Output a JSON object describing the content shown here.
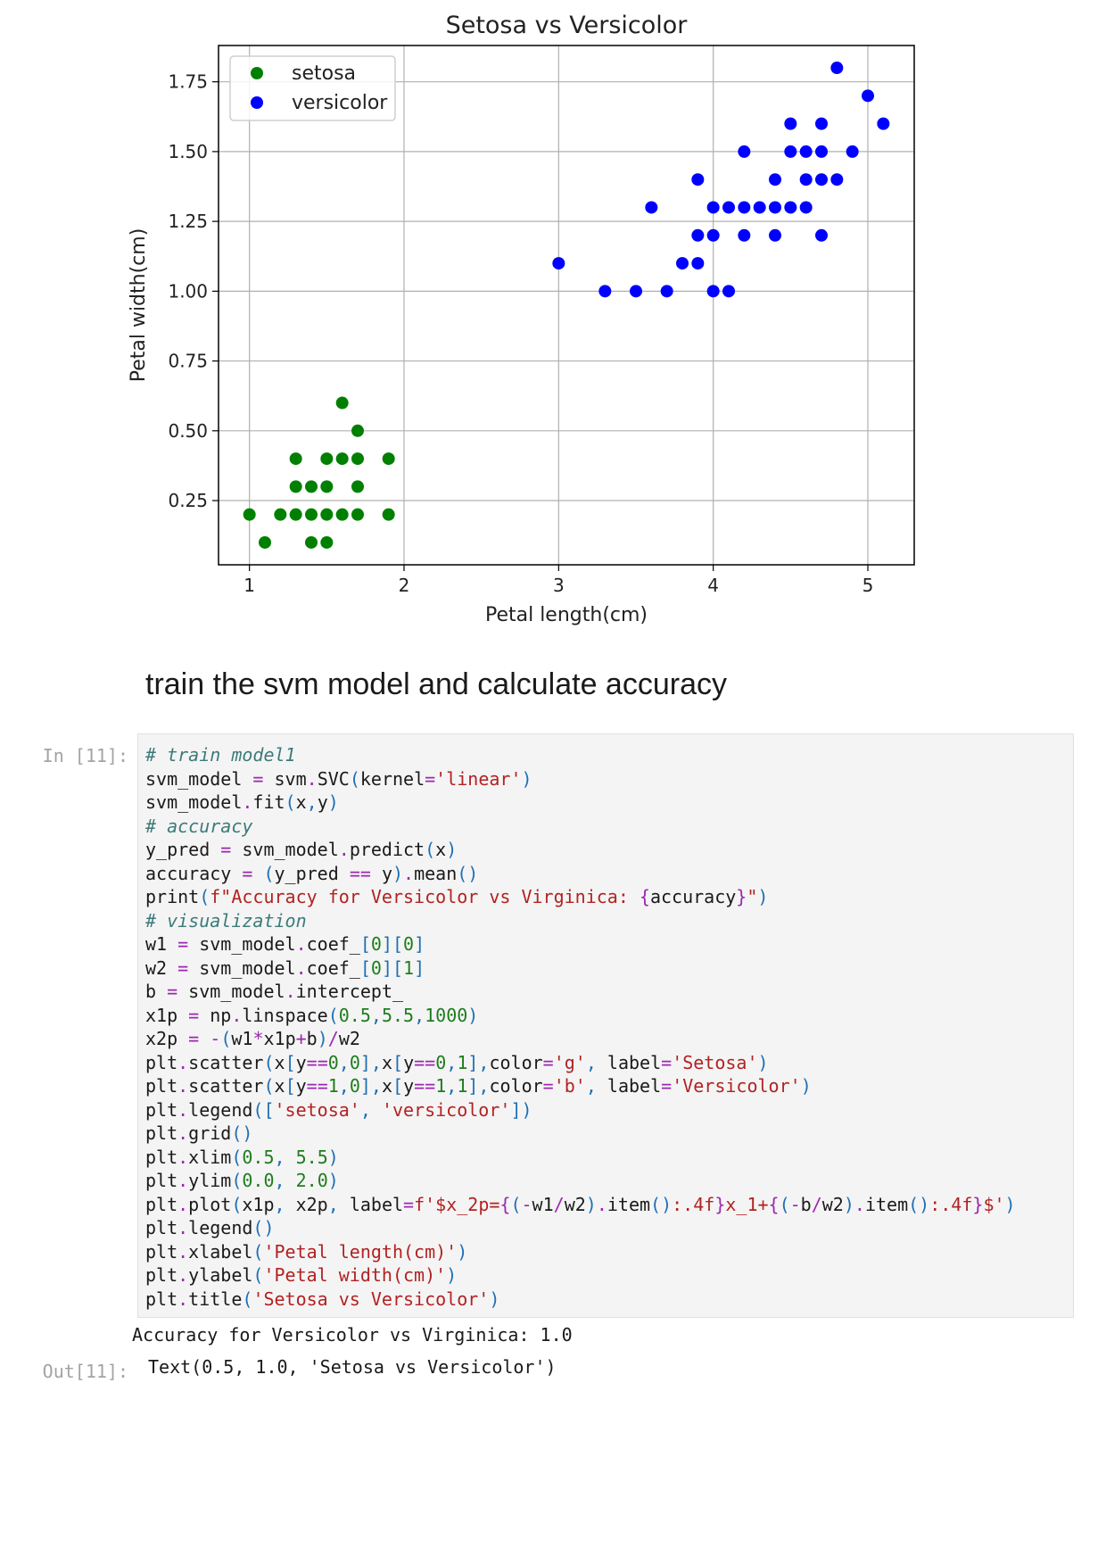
{
  "chart_data": {
    "type": "scatter",
    "title": "Setosa vs Versicolor",
    "xlabel": "Petal length(cm)",
    "ylabel": "Petal width(cm)",
    "xlim": [
      0.8,
      5.3
    ],
    "ylim": [
      0.02,
      1.88
    ],
    "xticks": [
      1,
      2,
      3,
      4,
      5
    ],
    "yticks": [
      0.25,
      0.5,
      0.75,
      1.0,
      1.25,
      1.5,
      1.75
    ],
    "ytick_labels": [
      "0.25",
      "0.50",
      "0.75",
      "1.00",
      "1.25",
      "1.50",
      "1.75"
    ],
    "grid": true,
    "legend_position": "top-left",
    "series": [
      {
        "name": "setosa",
        "color": "#008000",
        "points": [
          [
            1.0,
            0.2
          ],
          [
            1.1,
            0.1
          ],
          [
            1.2,
            0.2
          ],
          [
            1.3,
            0.2
          ],
          [
            1.3,
            0.3
          ],
          [
            1.3,
            0.4
          ],
          [
            1.4,
            0.1
          ],
          [
            1.4,
            0.2
          ],
          [
            1.4,
            0.3
          ],
          [
            1.5,
            0.1
          ],
          [
            1.5,
            0.2
          ],
          [
            1.5,
            0.3
          ],
          [
            1.5,
            0.4
          ],
          [
            1.6,
            0.2
          ],
          [
            1.6,
            0.4
          ],
          [
            1.6,
            0.6
          ],
          [
            1.7,
            0.2
          ],
          [
            1.7,
            0.3
          ],
          [
            1.7,
            0.4
          ],
          [
            1.7,
            0.5
          ],
          [
            1.9,
            0.2
          ],
          [
            1.9,
            0.4
          ]
        ]
      },
      {
        "name": "versicolor",
        "color": "#0000ff",
        "points": [
          [
            3.0,
            1.1
          ],
          [
            3.3,
            1.0
          ],
          [
            3.5,
            1.0
          ],
          [
            3.6,
            1.3
          ],
          [
            3.7,
            1.0
          ],
          [
            3.8,
            1.1
          ],
          [
            3.9,
            1.1
          ],
          [
            3.9,
            1.2
          ],
          [
            3.9,
            1.4
          ],
          [
            4.0,
            1.0
          ],
          [
            4.0,
            1.2
          ],
          [
            4.0,
            1.3
          ],
          [
            4.1,
            1.0
          ],
          [
            4.1,
            1.3
          ],
          [
            4.2,
            1.2
          ],
          [
            4.2,
            1.3
          ],
          [
            4.2,
            1.5
          ],
          [
            4.3,
            1.3
          ],
          [
            4.4,
            1.2
          ],
          [
            4.4,
            1.3
          ],
          [
            4.4,
            1.4
          ],
          [
            4.5,
            1.3
          ],
          [
            4.5,
            1.5
          ],
          [
            4.5,
            1.6
          ],
          [
            4.6,
            1.3
          ],
          [
            4.6,
            1.4
          ],
          [
            4.6,
            1.5
          ],
          [
            4.7,
            1.2
          ],
          [
            4.7,
            1.4
          ],
          [
            4.7,
            1.5
          ],
          [
            4.7,
            1.6
          ],
          [
            4.8,
            1.4
          ],
          [
            4.8,
            1.8
          ],
          [
            4.9,
            1.5
          ],
          [
            5.0,
            1.7
          ],
          [
            5.1,
            1.6
          ]
        ]
      }
    ]
  },
  "markdown": {
    "heading": "train the svm model and calculate accuracy"
  },
  "cell": {
    "in_prompt": "In [11]:",
    "out_prompt": "Out[11]:",
    "code_lines": [
      [
        [
          "c",
          "# train model1"
        ]
      ],
      [
        [
          "t",
          "svm_model "
        ],
        [
          "o",
          "="
        ],
        [
          "t",
          " svm"
        ],
        [
          "o",
          "."
        ],
        [
          "t",
          "SVC"
        ],
        [
          "p",
          "("
        ],
        [
          "t",
          "kernel"
        ],
        [
          "o",
          "="
        ],
        [
          "s",
          "'linear'"
        ],
        [
          "p",
          ")"
        ]
      ],
      [
        [
          "t",
          "svm_model"
        ],
        [
          "o",
          "."
        ],
        [
          "t",
          "fit"
        ],
        [
          "p",
          "("
        ],
        [
          "t",
          "x"
        ],
        [
          "p",
          ","
        ],
        [
          "t",
          "y"
        ],
        [
          "p",
          ")"
        ]
      ],
      [
        [
          "c",
          "# accuracy"
        ]
      ],
      [
        [
          "t",
          "y_pred "
        ],
        [
          "o",
          "="
        ],
        [
          "t",
          " svm_model"
        ],
        [
          "o",
          "."
        ],
        [
          "t",
          "predict"
        ],
        [
          "p",
          "("
        ],
        [
          "t",
          "x"
        ],
        [
          "p",
          ")"
        ]
      ],
      [
        [
          "t",
          "accuracy "
        ],
        [
          "o",
          "="
        ],
        [
          "t",
          " "
        ],
        [
          "p",
          "("
        ],
        [
          "t",
          "y_pred "
        ],
        [
          "o",
          "=="
        ],
        [
          "t",
          " y"
        ],
        [
          "p",
          ")"
        ],
        [
          "o",
          "."
        ],
        [
          "t",
          "mean"
        ],
        [
          "p",
          "()"
        ]
      ],
      [
        [
          "t",
          "print"
        ],
        [
          "p",
          "("
        ],
        [
          "s",
          "f\"Accuracy for Versicolor vs Virginica: "
        ],
        [
          "o",
          "{"
        ],
        [
          "t",
          "accuracy"
        ],
        [
          "o",
          "}"
        ],
        [
          "s",
          "\""
        ],
        [
          "p",
          ")"
        ]
      ],
      [
        [
          "c",
          "# visualization"
        ]
      ],
      [
        [
          "t",
          "w1 "
        ],
        [
          "o",
          "="
        ],
        [
          "t",
          " svm_model"
        ],
        [
          "o",
          "."
        ],
        [
          "t",
          "coef_"
        ],
        [
          "p",
          "["
        ],
        [
          "n",
          "0"
        ],
        [
          "p",
          "]["
        ],
        [
          "n",
          "0"
        ],
        [
          "p",
          "]"
        ]
      ],
      [
        [
          "t",
          "w2 "
        ],
        [
          "o",
          "="
        ],
        [
          "t",
          " svm_model"
        ],
        [
          "o",
          "."
        ],
        [
          "t",
          "coef_"
        ],
        [
          "p",
          "["
        ],
        [
          "n",
          "0"
        ],
        [
          "p",
          "]["
        ],
        [
          "n",
          "1"
        ],
        [
          "p",
          "]"
        ]
      ],
      [
        [
          "t",
          "b "
        ],
        [
          "o",
          "="
        ],
        [
          "t",
          " svm_model"
        ],
        [
          "o",
          "."
        ],
        [
          "t",
          "intercept_"
        ]
      ],
      [
        [
          "t",
          "x1p "
        ],
        [
          "o",
          "="
        ],
        [
          "t",
          " np"
        ],
        [
          "o",
          "."
        ],
        [
          "t",
          "linspace"
        ],
        [
          "p",
          "("
        ],
        [
          "n",
          "0.5"
        ],
        [
          "p",
          ","
        ],
        [
          "n",
          "5.5"
        ],
        [
          "p",
          ","
        ],
        [
          "n",
          "1000"
        ],
        [
          "p",
          ")"
        ]
      ],
      [
        [
          "t",
          "x2p "
        ],
        [
          "o",
          "="
        ],
        [
          "t",
          " "
        ],
        [
          "o",
          "-"
        ],
        [
          "p",
          "("
        ],
        [
          "t",
          "w1"
        ],
        [
          "o",
          "*"
        ],
        [
          "t",
          "x1p"
        ],
        [
          "o",
          "+"
        ],
        [
          "t",
          "b"
        ],
        [
          "p",
          ")"
        ],
        [
          "o",
          "/"
        ],
        [
          "t",
          "w2"
        ]
      ],
      [
        [
          "t",
          "plt"
        ],
        [
          "o",
          "."
        ],
        [
          "t",
          "scatter"
        ],
        [
          "p",
          "("
        ],
        [
          "t",
          "x"
        ],
        [
          "p",
          "["
        ],
        [
          "t",
          "y"
        ],
        [
          "o",
          "=="
        ],
        [
          "n",
          "0"
        ],
        [
          "p",
          ","
        ],
        [
          "n",
          "0"
        ],
        [
          "p",
          "],"
        ],
        [
          "t",
          "x"
        ],
        [
          "p",
          "["
        ],
        [
          "t",
          "y"
        ],
        [
          "o",
          "=="
        ],
        [
          "n",
          "0"
        ],
        [
          "p",
          ","
        ],
        [
          "n",
          "1"
        ],
        [
          "p",
          "],"
        ],
        [
          "t",
          "color"
        ],
        [
          "o",
          "="
        ],
        [
          "s",
          "'g'"
        ],
        [
          "p",
          ","
        ],
        [
          "t",
          " label"
        ],
        [
          "o",
          "="
        ],
        [
          "s",
          "'Setosa'"
        ],
        [
          "p",
          ")"
        ]
      ],
      [
        [
          "t",
          "plt"
        ],
        [
          "o",
          "."
        ],
        [
          "t",
          "scatter"
        ],
        [
          "p",
          "("
        ],
        [
          "t",
          "x"
        ],
        [
          "p",
          "["
        ],
        [
          "t",
          "y"
        ],
        [
          "o",
          "=="
        ],
        [
          "n",
          "1"
        ],
        [
          "p",
          ","
        ],
        [
          "n",
          "0"
        ],
        [
          "p",
          "],"
        ],
        [
          "t",
          "x"
        ],
        [
          "p",
          "["
        ],
        [
          "t",
          "y"
        ],
        [
          "o",
          "=="
        ],
        [
          "n",
          "1"
        ],
        [
          "p",
          ","
        ],
        [
          "n",
          "1"
        ],
        [
          "p",
          "],"
        ],
        [
          "t",
          "color"
        ],
        [
          "o",
          "="
        ],
        [
          "s",
          "'b'"
        ],
        [
          "p",
          ","
        ],
        [
          "t",
          " label"
        ],
        [
          "o",
          "="
        ],
        [
          "s",
          "'Versicolor'"
        ],
        [
          "p",
          ")"
        ]
      ],
      [
        [
          "t",
          "plt"
        ],
        [
          "o",
          "."
        ],
        [
          "t",
          "legend"
        ],
        [
          "p",
          "(["
        ],
        [
          "s",
          "'setosa'"
        ],
        [
          "p",
          ","
        ],
        [
          "t",
          " "
        ],
        [
          "s",
          "'versicolor'"
        ],
        [
          "p",
          "])"
        ]
      ],
      [
        [
          "t",
          "plt"
        ],
        [
          "o",
          "."
        ],
        [
          "t",
          "grid"
        ],
        [
          "p",
          "()"
        ]
      ],
      [
        [
          "t",
          "plt"
        ],
        [
          "o",
          "."
        ],
        [
          "t",
          "xlim"
        ],
        [
          "p",
          "("
        ],
        [
          "n",
          "0.5"
        ],
        [
          "p",
          ","
        ],
        [
          "t",
          " "
        ],
        [
          "n",
          "5.5"
        ],
        [
          "p",
          ")"
        ]
      ],
      [
        [
          "t",
          "plt"
        ],
        [
          "o",
          "."
        ],
        [
          "t",
          "ylim"
        ],
        [
          "p",
          "("
        ],
        [
          "n",
          "0.0"
        ],
        [
          "p",
          ","
        ],
        [
          "t",
          " "
        ],
        [
          "n",
          "2.0"
        ],
        [
          "p",
          ")"
        ]
      ],
      [
        [
          "t",
          "plt"
        ],
        [
          "o",
          "."
        ],
        [
          "t",
          "plot"
        ],
        [
          "p",
          "("
        ],
        [
          "t",
          "x1p"
        ],
        [
          "p",
          ","
        ],
        [
          "t",
          " x2p"
        ],
        [
          "p",
          ","
        ],
        [
          "t",
          " label"
        ],
        [
          "o",
          "="
        ],
        [
          "s",
          "f'$x_2p="
        ],
        [
          "o",
          "{"
        ],
        [
          "p",
          "("
        ],
        [
          "o",
          "-"
        ],
        [
          "t",
          "w1"
        ],
        [
          "o",
          "/"
        ],
        [
          "t",
          "w2"
        ],
        [
          "p",
          ")"
        ],
        [
          "o",
          "."
        ],
        [
          "t",
          "item"
        ],
        [
          "p",
          "()"
        ],
        [
          "s",
          ":.4f"
        ],
        [
          "o",
          "}"
        ],
        [
          "s",
          "x_1+"
        ],
        [
          "o",
          "{"
        ],
        [
          "p",
          "("
        ],
        [
          "o",
          "-"
        ],
        [
          "t",
          "b"
        ],
        [
          "o",
          "/"
        ],
        [
          "t",
          "w2"
        ],
        [
          "p",
          ")"
        ],
        [
          "o",
          "."
        ],
        [
          "t",
          "item"
        ],
        [
          "p",
          "()"
        ],
        [
          "s",
          ":.4f"
        ],
        [
          "o",
          "}"
        ],
        [
          "s",
          "$'"
        ],
        [
          "p",
          ")"
        ]
      ],
      [
        [
          "t",
          "plt"
        ],
        [
          "o",
          "."
        ],
        [
          "t",
          "legend"
        ],
        [
          "p",
          "()"
        ]
      ],
      [
        [
          "t",
          "plt"
        ],
        [
          "o",
          "."
        ],
        [
          "t",
          "xlabel"
        ],
        [
          "p",
          "("
        ],
        [
          "s",
          "'Petal length(cm)'"
        ],
        [
          "p",
          ")"
        ]
      ],
      [
        [
          "t",
          "plt"
        ],
        [
          "o",
          "."
        ],
        [
          "t",
          "ylabel"
        ],
        [
          "p",
          "("
        ],
        [
          "s",
          "'Petal width(cm)'"
        ],
        [
          "p",
          ")"
        ]
      ],
      [
        [
          "t",
          "plt"
        ],
        [
          "o",
          "."
        ],
        [
          "t",
          "title"
        ],
        [
          "p",
          "("
        ],
        [
          "s",
          "'Setosa vs Versicolor'"
        ],
        [
          "p",
          ")"
        ]
      ]
    ],
    "stdout": "Accuracy for Versicolor vs Virginica: 1.0",
    "output": "Text(0.5, 1.0, 'Setosa vs Versicolor')"
  }
}
